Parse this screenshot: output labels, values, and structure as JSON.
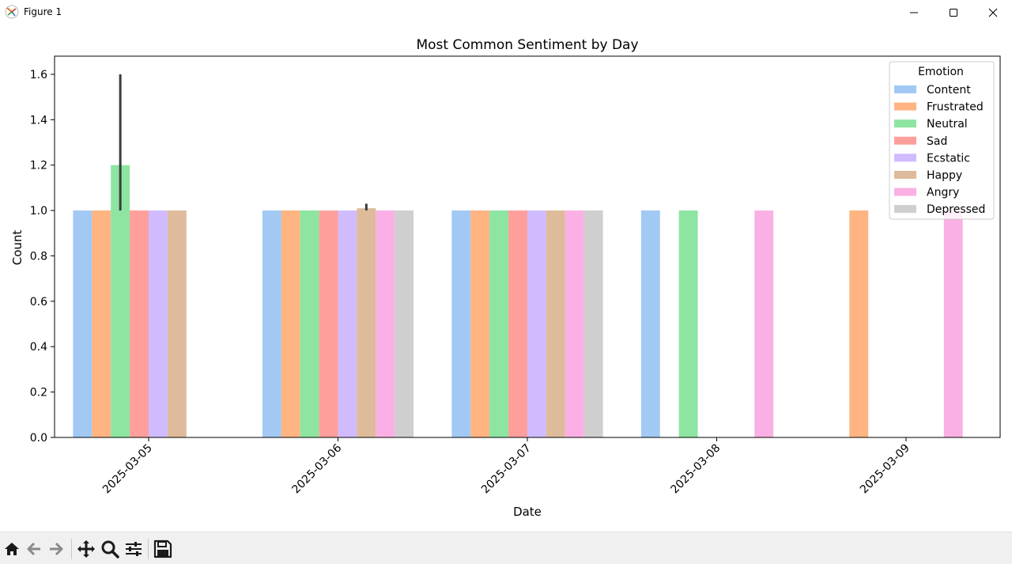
{
  "window": {
    "title": "Figure 1",
    "minimize_icon": "minimize-icon",
    "maximize_icon": "maximize-icon",
    "close_icon": "close-icon"
  },
  "toolbar": {
    "items": [
      "home-icon",
      "back-arrow-icon",
      "forward-arrow-icon",
      "pan-move-icon",
      "zoom-magnifier-icon",
      "configure-subplots-icon",
      "save-floppy-icon"
    ]
  },
  "chart_data": {
    "type": "bar",
    "title": "Most Common Sentiment by Day",
    "xlabel": "Date",
    "ylabel": "Count",
    "ylim": [
      0,
      1.68
    ],
    "yticks": [
      0.0,
      0.2,
      0.4,
      0.6,
      0.8,
      1.0,
      1.2,
      1.4,
      1.6
    ],
    "ytick_labels": [
      "0.0",
      "0.2",
      "0.4",
      "0.6",
      "0.8",
      "1.0",
      "1.2",
      "1.4",
      "1.6"
    ],
    "categories": [
      "2025-03-05",
      "2025-03-06",
      "2025-03-07",
      "2025-03-08",
      "2025-03-09"
    ],
    "legend": {
      "title": "Emotion",
      "placement": "top-right"
    },
    "series": [
      {
        "name": "Content",
        "color": "#a1c9f4",
        "values": [
          1,
          1,
          1,
          1,
          null
        ],
        "err": [
          null,
          null,
          null,
          null,
          null
        ]
      },
      {
        "name": "Frustrated",
        "color": "#ffb482",
        "values": [
          1,
          1,
          1,
          null,
          1
        ],
        "err": [
          null,
          null,
          null,
          null,
          null
        ]
      },
      {
        "name": "Neutral",
        "color": "#8de5a1",
        "values": [
          1.2,
          1,
          1,
          1,
          null
        ],
        "err": [
          [
            1.0,
            1.6
          ],
          null,
          null,
          null,
          null
        ]
      },
      {
        "name": "Sad",
        "color": "#ff9f9b",
        "values": [
          1,
          1,
          1,
          null,
          null
        ],
        "err": [
          null,
          null,
          null,
          null,
          null
        ]
      },
      {
        "name": "Ecstatic",
        "color": "#d0bbff",
        "values": [
          1,
          1,
          1,
          null,
          null
        ],
        "err": [
          null,
          null,
          null,
          null,
          null
        ]
      },
      {
        "name": "Happy",
        "color": "#debb9b",
        "values": [
          1,
          1.01,
          1,
          null,
          null
        ],
        "err": [
          null,
          [
            1.0,
            1.03
          ],
          null,
          null,
          null
        ]
      },
      {
        "name": "Angry",
        "color": "#fab0e4",
        "values": [
          null,
          1,
          1,
          1,
          1
        ],
        "err": [
          null,
          null,
          null,
          null,
          null
        ]
      },
      {
        "name": "Depressed",
        "color": "#cfcfcf",
        "values": [
          null,
          1,
          1,
          null,
          null
        ],
        "err": [
          null,
          null,
          null,
          null,
          null
        ]
      }
    ]
  }
}
